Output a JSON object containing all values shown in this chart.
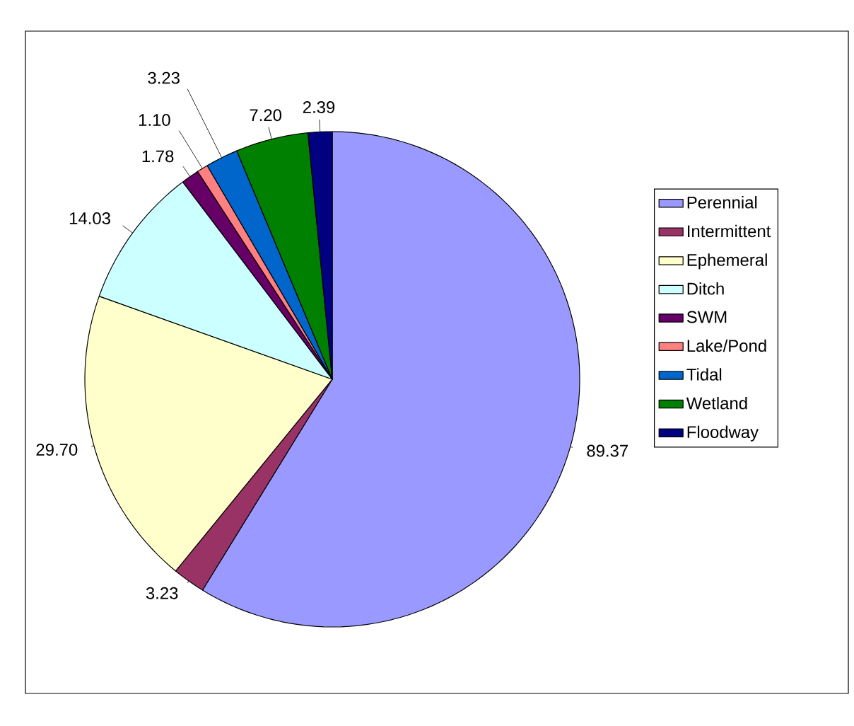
{
  "chart_data": {
    "type": "pie",
    "categories": [
      "Perennial",
      "Intermittent",
      "Ephemeral",
      "Ditch",
      "SWM",
      "Lake/Pond",
      "Tidal",
      "Wetland",
      "Floodway"
    ],
    "values": [
      89.37,
      3.23,
      29.7,
      14.03,
      1.78,
      1.1,
      3.23,
      7.2,
      2.39
    ],
    "colors": [
      "#9999ff",
      "#993366",
      "#ffffcc",
      "#ccffff",
      "#660066",
      "#ff8080",
      "#0066cc",
      "#008000",
      "#000080"
    ],
    "value_labels": [
      "89.37",
      "3.23",
      "29.70",
      "14.03",
      "1.78",
      "1.10",
      "3.23",
      "7.20",
      "2.39"
    ],
    "legend": "right"
  }
}
